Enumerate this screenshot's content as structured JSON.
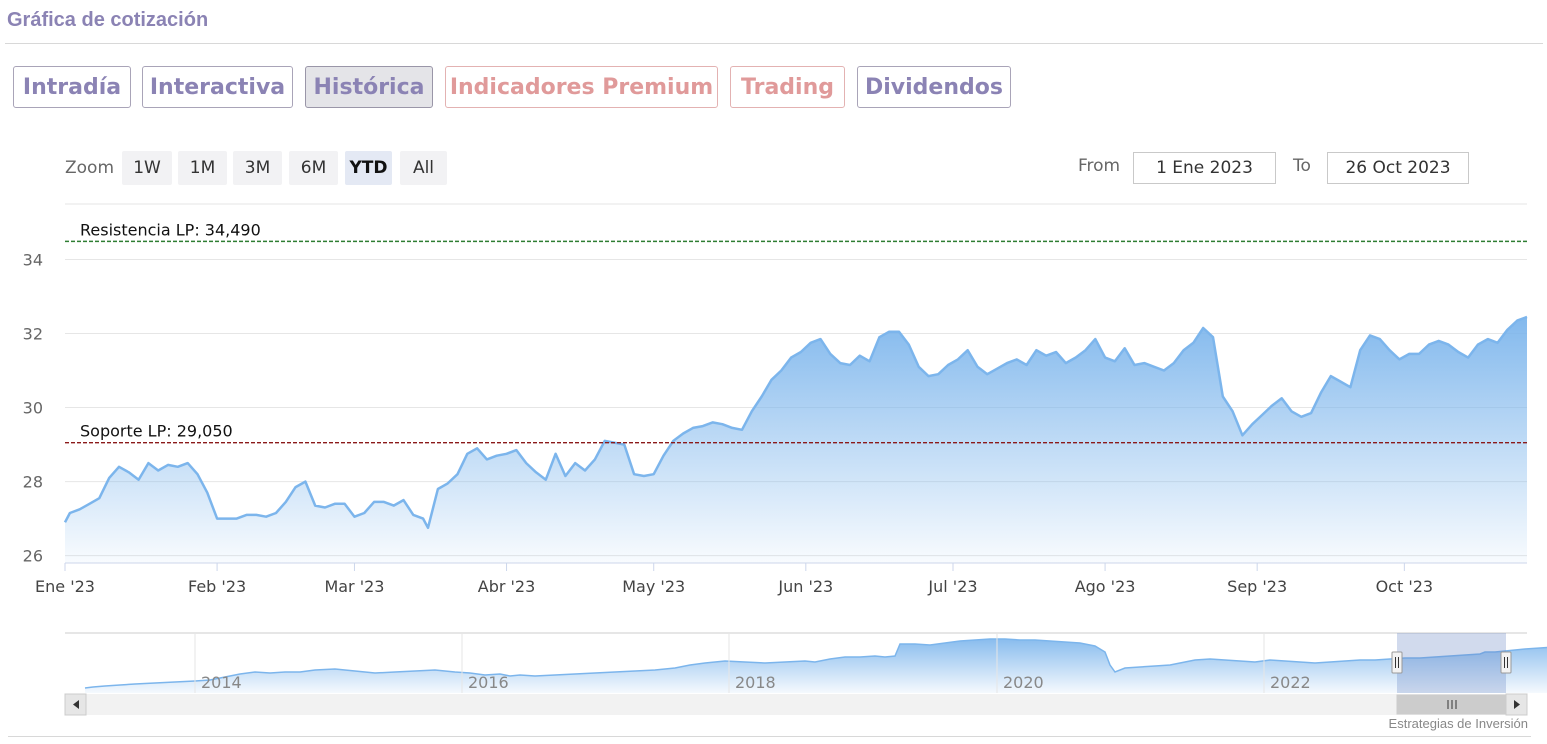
{
  "header": {
    "title": "Gráfica de cotización"
  },
  "tabs": [
    {
      "label": "Intradía",
      "active": false,
      "premium": false
    },
    {
      "label": "Interactiva",
      "active": false,
      "premium": false
    },
    {
      "label": "Histórica",
      "active": true,
      "premium": false
    },
    {
      "label": "Indicadores Premium",
      "active": false,
      "premium": true
    },
    {
      "label": "Trading",
      "active": false,
      "premium": true
    },
    {
      "label": "Dividendos",
      "active": false,
      "premium": false
    }
  ],
  "range_selector": {
    "zoom_label": "Zoom",
    "buttons": [
      "1W",
      "1M",
      "3M",
      "6M",
      "YTD",
      "All"
    ],
    "active": "YTD",
    "from_label": "From",
    "from_value": "1 Ene 2023",
    "to_label": "To",
    "to_value": "26 Oct 2023"
  },
  "colors": {
    "line": "#7cb5ec",
    "resistance": "#2e7d32",
    "support": "#8b1a1a",
    "accent": "#8b83b4"
  },
  "chart_data": {
    "type": "area",
    "x_tick_labels": [
      "Ene '23",
      "Feb '23",
      "Mar '23",
      "Abr '23",
      "May '23",
      "Jun '23",
      "Jul '23",
      "Ago '23",
      "Sep '23",
      "Oct '23"
    ],
    "y_ticks": [
      26,
      28,
      30,
      32,
      34
    ],
    "ylim": [
      25.8,
      35.5
    ],
    "xlim": [
      "2023-01-01",
      "2023-10-26"
    ],
    "grid": true,
    "series": [
      {
        "points": [
          [
            "2023-01-01",
            26.9
          ],
          [
            "2023-01-02",
            27.15
          ],
          [
            "2023-01-04",
            27.25
          ],
          [
            "2023-01-06",
            27.4
          ],
          [
            "2023-01-08",
            27.55
          ],
          [
            "2023-01-10",
            28.1
          ],
          [
            "2023-01-12",
            28.4
          ],
          [
            "2023-01-14",
            28.25
          ],
          [
            "2023-01-16",
            28.05
          ],
          [
            "2023-01-18",
            28.5
          ],
          [
            "2023-01-20",
            28.3
          ],
          [
            "2023-01-22",
            28.45
          ],
          [
            "2023-01-24",
            28.4
          ],
          [
            "2023-01-26",
            28.5
          ],
          [
            "2023-01-28",
            28.2
          ],
          [
            "2023-01-30",
            27.7
          ],
          [
            "2023-02-01",
            27.0
          ],
          [
            "2023-02-03",
            27.0
          ],
          [
            "2023-02-05",
            27.0
          ],
          [
            "2023-02-07",
            27.1
          ],
          [
            "2023-02-09",
            27.1
          ],
          [
            "2023-02-11",
            27.05
          ],
          [
            "2023-02-13",
            27.15
          ],
          [
            "2023-02-15",
            27.45
          ],
          [
            "2023-02-17",
            27.85
          ],
          [
            "2023-02-19",
            28.0
          ],
          [
            "2023-02-21",
            27.35
          ],
          [
            "2023-02-23",
            27.3
          ],
          [
            "2023-02-25",
            27.4
          ],
          [
            "2023-02-27",
            27.4
          ],
          [
            "2023-03-01",
            27.05
          ],
          [
            "2023-03-03",
            27.15
          ],
          [
            "2023-03-05",
            27.45
          ],
          [
            "2023-03-07",
            27.45
          ],
          [
            "2023-03-09",
            27.35
          ],
          [
            "2023-03-11",
            27.5
          ],
          [
            "2023-03-13",
            27.1
          ],
          [
            "2023-03-15",
            27.0
          ],
          [
            "2023-03-16",
            26.75
          ],
          [
            "2023-03-18",
            27.8
          ],
          [
            "2023-03-20",
            27.95
          ],
          [
            "2023-03-22",
            28.2
          ],
          [
            "2023-03-24",
            28.75
          ],
          [
            "2023-03-26",
            28.9
          ],
          [
            "2023-03-28",
            28.6
          ],
          [
            "2023-03-30",
            28.7
          ],
          [
            "2023-04-01",
            28.75
          ],
          [
            "2023-04-03",
            28.85
          ],
          [
            "2023-04-05",
            28.5
          ],
          [
            "2023-04-07",
            28.25
          ],
          [
            "2023-04-09",
            28.05
          ],
          [
            "2023-04-11",
            28.75
          ],
          [
            "2023-04-13",
            28.15
          ],
          [
            "2023-04-15",
            28.5
          ],
          [
            "2023-04-17",
            28.3
          ],
          [
            "2023-04-19",
            28.6
          ],
          [
            "2023-04-21",
            29.1
          ],
          [
            "2023-04-23",
            29.05
          ],
          [
            "2023-04-25",
            29.0
          ],
          [
            "2023-04-27",
            28.2
          ],
          [
            "2023-04-29",
            28.15
          ],
          [
            "2023-05-01",
            28.2
          ],
          [
            "2023-05-03",
            28.7
          ],
          [
            "2023-05-05",
            29.1
          ],
          [
            "2023-05-07",
            29.3
          ],
          [
            "2023-05-09",
            29.45
          ],
          [
            "2023-05-11",
            29.5
          ],
          [
            "2023-05-13",
            29.6
          ],
          [
            "2023-05-15",
            29.55
          ],
          [
            "2023-05-17",
            29.45
          ],
          [
            "2023-05-19",
            29.4
          ],
          [
            "2023-05-21",
            29.9
          ],
          [
            "2023-05-23",
            30.3
          ],
          [
            "2023-05-25",
            30.75
          ],
          [
            "2023-05-27",
            31.0
          ],
          [
            "2023-05-29",
            31.35
          ],
          [
            "2023-05-31",
            31.5
          ],
          [
            "2023-06-02",
            31.75
          ],
          [
            "2023-06-04",
            31.85
          ],
          [
            "2023-06-06",
            31.45
          ],
          [
            "2023-06-08",
            31.2
          ],
          [
            "2023-06-10",
            31.15
          ],
          [
            "2023-06-12",
            31.4
          ],
          [
            "2023-06-14",
            31.25
          ],
          [
            "2023-06-16",
            31.9
          ],
          [
            "2023-06-18",
            32.05
          ],
          [
            "2023-06-20",
            32.05
          ],
          [
            "2023-06-22",
            31.7
          ],
          [
            "2023-06-24",
            31.1
          ],
          [
            "2023-06-26",
            30.85
          ],
          [
            "2023-06-28",
            30.9
          ],
          [
            "2023-06-30",
            31.15
          ],
          [
            "2023-07-02",
            31.3
          ],
          [
            "2023-07-04",
            31.55
          ],
          [
            "2023-07-06",
            31.1
          ],
          [
            "2023-07-08",
            30.9
          ],
          [
            "2023-07-10",
            31.05
          ],
          [
            "2023-07-12",
            31.2
          ],
          [
            "2023-07-14",
            31.3
          ],
          [
            "2023-07-16",
            31.15
          ],
          [
            "2023-07-18",
            31.55
          ],
          [
            "2023-07-20",
            31.4
          ],
          [
            "2023-07-22",
            31.5
          ],
          [
            "2023-07-24",
            31.2
          ],
          [
            "2023-07-26",
            31.35
          ],
          [
            "2023-07-28",
            31.55
          ],
          [
            "2023-07-30",
            31.85
          ],
          [
            "2023-08-01",
            31.35
          ],
          [
            "2023-08-03",
            31.25
          ],
          [
            "2023-08-05",
            31.6
          ],
          [
            "2023-08-07",
            31.15
          ],
          [
            "2023-08-09",
            31.2
          ],
          [
            "2023-08-11",
            31.1
          ],
          [
            "2023-08-13",
            31.0
          ],
          [
            "2023-08-15",
            31.2
          ],
          [
            "2023-08-17",
            31.55
          ],
          [
            "2023-08-19",
            31.75
          ],
          [
            "2023-08-21",
            32.15
          ],
          [
            "2023-08-23",
            31.9
          ],
          [
            "2023-08-25",
            30.3
          ],
          [
            "2023-08-27",
            29.9
          ],
          [
            "2023-08-29",
            29.25
          ],
          [
            "2023-08-31",
            29.55
          ],
          [
            "2023-09-02",
            29.8
          ],
          [
            "2023-09-04",
            30.05
          ],
          [
            "2023-09-06",
            30.25
          ],
          [
            "2023-09-08",
            29.9
          ],
          [
            "2023-09-10",
            29.75
          ],
          [
            "2023-09-12",
            29.85
          ],
          [
            "2023-09-14",
            30.4
          ],
          [
            "2023-09-16",
            30.85
          ],
          [
            "2023-09-18",
            30.7
          ],
          [
            "2023-09-20",
            30.55
          ],
          [
            "2023-09-22",
            31.55
          ],
          [
            "2023-09-24",
            31.95
          ],
          [
            "2023-09-26",
            31.85
          ],
          [
            "2023-09-28",
            31.55
          ],
          [
            "2023-09-30",
            31.3
          ],
          [
            "2023-10-02",
            31.45
          ],
          [
            "2023-10-04",
            31.45
          ],
          [
            "2023-10-06",
            31.7
          ],
          [
            "2023-10-08",
            31.8
          ],
          [
            "2023-10-10",
            31.7
          ],
          [
            "2023-10-12",
            31.5
          ],
          [
            "2023-10-14",
            31.35
          ],
          [
            "2023-10-16",
            31.7
          ],
          [
            "2023-10-18",
            31.85
          ],
          [
            "2023-10-20",
            31.75
          ],
          [
            "2023-10-22",
            32.1
          ],
          [
            "2023-10-24",
            32.35
          ],
          [
            "2023-10-26",
            32.45
          ]
        ]
      }
    ],
    "reference_lines": [
      {
        "label": "Resistencia LP: 34,490",
        "value": 34.49,
        "color": "#2e7d32",
        "style": "dashed"
      },
      {
        "label": "Soporte LP: 29,050",
        "value": 29.05,
        "color": "#8b1a1a",
        "style": "dashed"
      }
    ],
    "navigator": {
      "x_tick_labels": [
        "2014",
        "2016",
        "2018",
        "2020",
        "2022"
      ],
      "selected_range": "YTD"
    }
  },
  "credit": "Estrategias de Inversión"
}
